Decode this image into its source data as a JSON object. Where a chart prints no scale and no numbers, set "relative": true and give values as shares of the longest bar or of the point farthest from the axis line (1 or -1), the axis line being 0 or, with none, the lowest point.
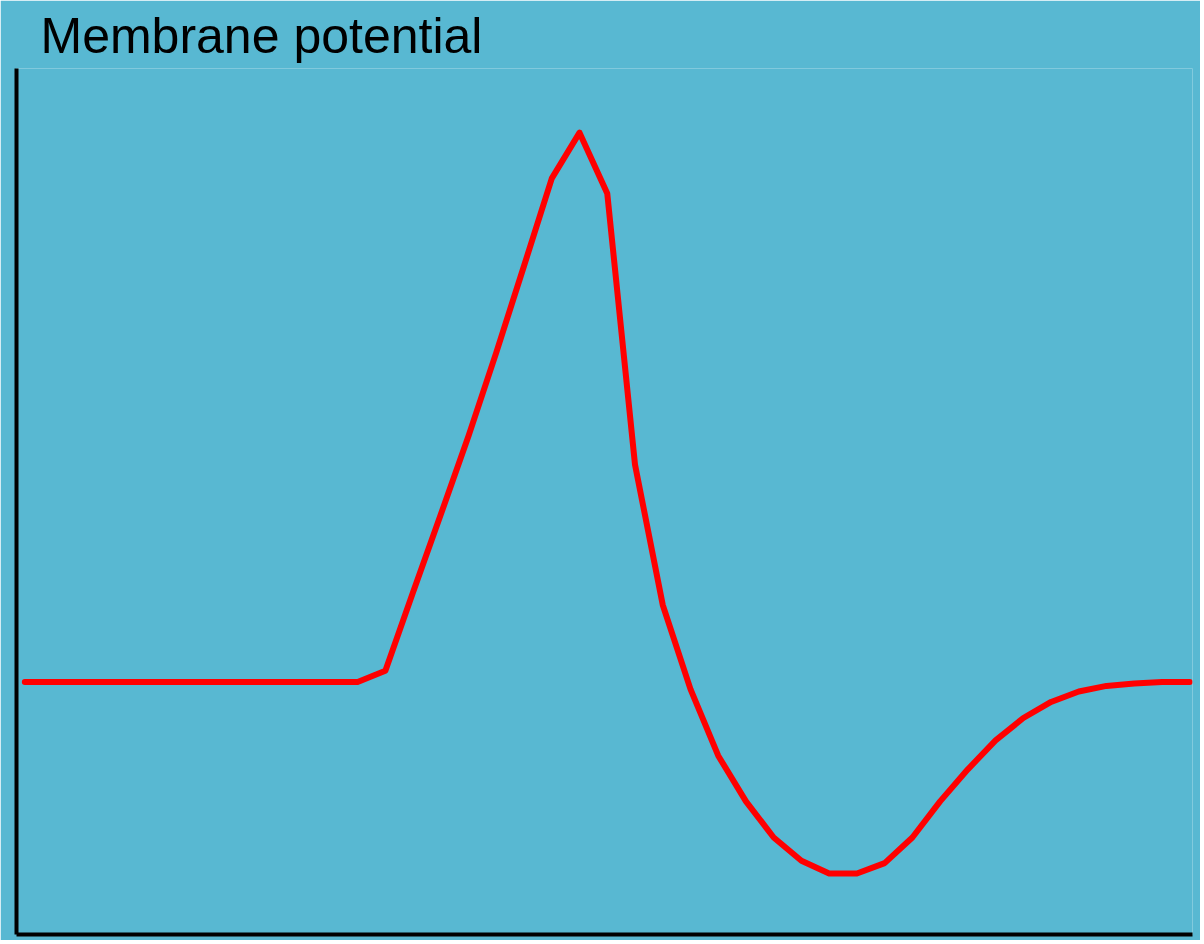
{
  "chart_data": {
    "type": "line",
    "relative": true,
    "ylabel": "Membrane potential",
    "tick_labels": false,
    "grid": false,
    "categories": [
      null,
      null,
      null,
      null,
      null,
      null,
      null,
      null,
      null,
      null,
      null,
      null,
      null,
      null,
      null,
      null,
      null,
      null,
      null,
      null,
      null,
      null,
      null,
      null,
      null,
      null,
      null,
      null,
      null,
      null,
      null,
      null,
      null,
      null,
      null,
      null,
      null,
      null,
      null,
      null,
      null,
      null,
      null
    ],
    "series": [
      {
        "color": "#ff0000",
        "values": [
          0.315,
          0.315,
          0.315,
          0.315,
          0.315,
          0.315,
          0.315,
          0.315,
          0.315,
          0.315,
          0.315,
          0.315,
          0.315,
          0.329,
          0.427,
          0.524,
          0.622,
          0.726,
          0.834,
          0.943,
          1.0,
          0.924,
          0.586,
          0.411,
          0.306,
          0.223,
          0.166,
          0.121,
          0.092,
          0.076,
          0.076,
          0.089,
          0.121,
          0.166,
          0.206,
          0.242,
          0.27,
          0.29,
          0.303,
          0.31,
          0.313,
          0.315,
          0.315
        ]
      }
    ]
  }
}
